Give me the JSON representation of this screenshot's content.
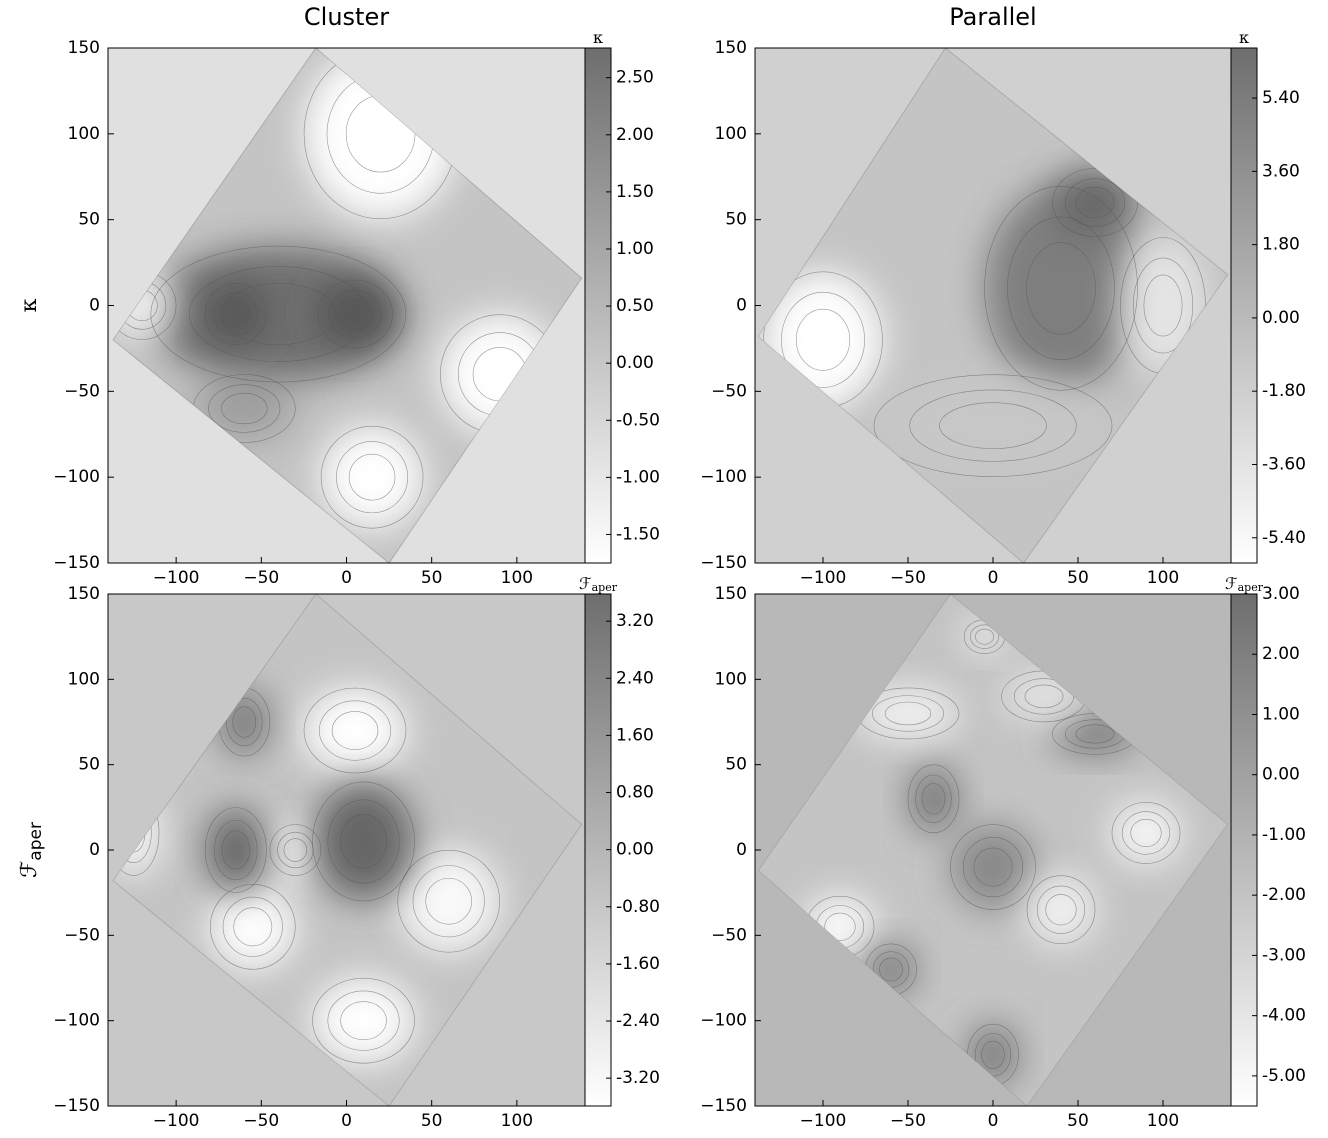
{
  "chart_data": [
    {
      "type": "contour",
      "title": "Cluster",
      "ylabel": "κ",
      "xlim": [
        -140,
        140
      ],
      "ylim": [
        -150,
        150
      ],
      "xticks": [
        {
          "value": -100,
          "label": "−100"
        },
        {
          "value": -50,
          "label": "−50"
        },
        0,
        50,
        100
      ],
      "yticks": [
        {
          "value": -150,
          "label": "−150"
        },
        {
          "value": -100,
          "label": "−100"
        },
        {
          "value": -50,
          "label": "−50"
        },
        0,
        50,
        100,
        150
      ],
      "colorbar": {
        "label": "κ",
        "lim": [
          -1.75,
          2.76
        ],
        "ticks": [
          {
            "value": 2.5,
            "label": "2.50"
          },
          {
            "value": 2,
            "label": "2.00"
          },
          {
            "value": 1.5,
            "label": "1.50"
          },
          {
            "value": 1,
            "label": "1.00"
          },
          {
            "value": 0.5,
            "label": "0.50"
          },
          {
            "value": 0,
            "label": "0.00"
          },
          {
            "value": -0.5,
            "label": "-0.50"
          },
          {
            "value": -1,
            "label": "-1.00"
          },
          {
            "value": -1.5,
            "label": "-1.50"
          }
        ]
      }
    },
    {
      "type": "contour",
      "title": "Parallel",
      "xlim": [
        -140,
        140
      ],
      "ylim": [
        -150,
        150
      ],
      "xticks": [
        {
          "value": -100,
          "label": "−100"
        },
        {
          "value": -50,
          "label": "−50"
        },
        0,
        50,
        100
      ],
      "yticks": [
        {
          "value": -150,
          "label": "−150"
        },
        {
          "value": -100,
          "label": "−100"
        },
        {
          "value": -50,
          "label": "−50"
        },
        0,
        50,
        100,
        150
      ],
      "colorbar": {
        "label": "κ",
        "lim": [
          -6.02,
          6.63
        ],
        "ticks": [
          {
            "value": 5.4,
            "label": "5.40"
          },
          {
            "value": 3.6,
            "label": "3.60"
          },
          {
            "value": 1.8,
            "label": "1.80"
          },
          {
            "value": 0,
            "label": "0.00"
          },
          {
            "value": -1.8,
            "label": "-1.80"
          },
          {
            "value": -3.6,
            "label": "-3.60"
          },
          {
            "value": -5.4,
            "label": "-5.40"
          }
        ]
      }
    },
    {
      "type": "contour",
      "ylabel": "ℱ",
      "ylabel_sub": "aper",
      "xlim": [
        -140,
        140
      ],
      "ylim": [
        -150,
        150
      ],
      "xticks": [
        {
          "value": -100,
          "label": "−100"
        },
        {
          "value": -50,
          "label": "−50"
        },
        0,
        50,
        100
      ],
      "yticks": [
        {
          "value": -150,
          "label": "−150"
        },
        {
          "value": -100,
          "label": "−100"
        },
        {
          "value": -50,
          "label": "−50"
        },
        0,
        50,
        100,
        150
      ],
      "colorbar": {
        "label": "ℱ",
        "label_sub": "aper",
        "lim": [
          -3.59,
          3.58
        ],
        "ticks": [
          {
            "value": 3.2,
            "label": "3.20"
          },
          {
            "value": 2.4,
            "label": "2.40"
          },
          {
            "value": 1.6,
            "label": "1.60"
          },
          {
            "value": 0.8,
            "label": "0.80"
          },
          {
            "value": 0,
            "label": "0.00"
          },
          {
            "value": -0.8,
            "label": "-0.80"
          },
          {
            "value": -1.6,
            "label": "-1.60"
          },
          {
            "value": -2.4,
            "label": "-2.40"
          },
          {
            "value": -3.2,
            "label": "-3.20"
          }
        ]
      }
    },
    {
      "type": "contour",
      "xlim": [
        -140,
        140
      ],
      "ylim": [
        -150,
        150
      ],
      "xticks": [
        {
          "value": -100,
          "label": "−100"
        },
        {
          "value": -50,
          "label": "−50"
        },
        0,
        50,
        100
      ],
      "yticks": [
        {
          "value": -150,
          "label": "−150"
        },
        {
          "value": -100,
          "label": "−100"
        },
        {
          "value": -50,
          "label": "−50"
        },
        0,
        50,
        100,
        150
      ],
      "colorbar": {
        "label": "ℱ",
        "label_sub": "aper",
        "lim": [
          -5.5,
          3
        ],
        "ticks": [
          {
            "value": 3,
            "label": "3.00"
          },
          {
            "value": 2,
            "label": "2.00"
          },
          {
            "value": 1,
            "label": "1.00"
          },
          {
            "value": 0,
            "label": "0.00"
          },
          {
            "value": -1,
            "label": "-1.00"
          },
          {
            "value": -2,
            "label": "-2.00"
          },
          {
            "value": -3,
            "label": "-3.00"
          },
          {
            "value": -4,
            "label": "-4.00"
          },
          {
            "value": -5,
            "label": "-5.00"
          }
        ]
      }
    }
  ]
}
